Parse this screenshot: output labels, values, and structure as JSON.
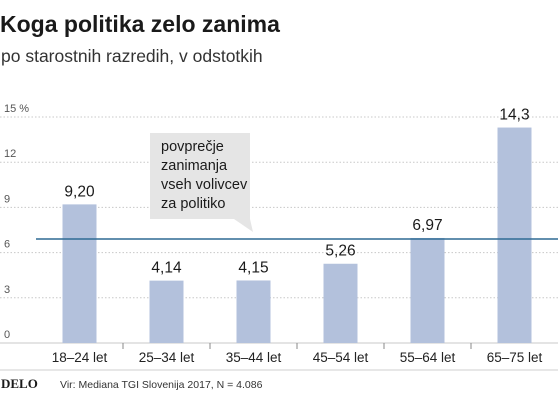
{
  "chart_data": {
    "type": "bar",
    "title": "Koga politika zelo zanima",
    "subtitle": "po starostnih razredih, v odstotkih",
    "categories": [
      "18–24 let",
      "25–34 let",
      "35–44 let",
      "45–54 let",
      "55–64 let",
      "65–75 let"
    ],
    "values": [
      9.2,
      4.14,
      4.15,
      5.26,
      6.97,
      14.3
    ],
    "value_labels": [
      "9,20",
      "4,14",
      "4,15",
      "5,26",
      "6,97",
      "14,3"
    ],
    "yticks": [
      0,
      3,
      6,
      9,
      12,
      15
    ],
    "ytick_labels": [
      "0",
      "3",
      "6",
      "9",
      "12",
      "15 %"
    ],
    "ylim": [
      0,
      15
    ],
    "grid": true,
    "reference_line": {
      "value": 6.9,
      "label_lines": [
        "povprečje",
        "zanimanja",
        "vseh volivcev",
        "za politiko"
      ]
    },
    "colors": {
      "bar": "#b3c1dc",
      "reference_line": "#2e6a94",
      "callout": "#e5e5e5",
      "grid": "#c8c8c8"
    }
  },
  "footer": {
    "brand": "DELO",
    "source": "Vir: Mediana TGI Slovenija 2017, N = 4.086"
  }
}
